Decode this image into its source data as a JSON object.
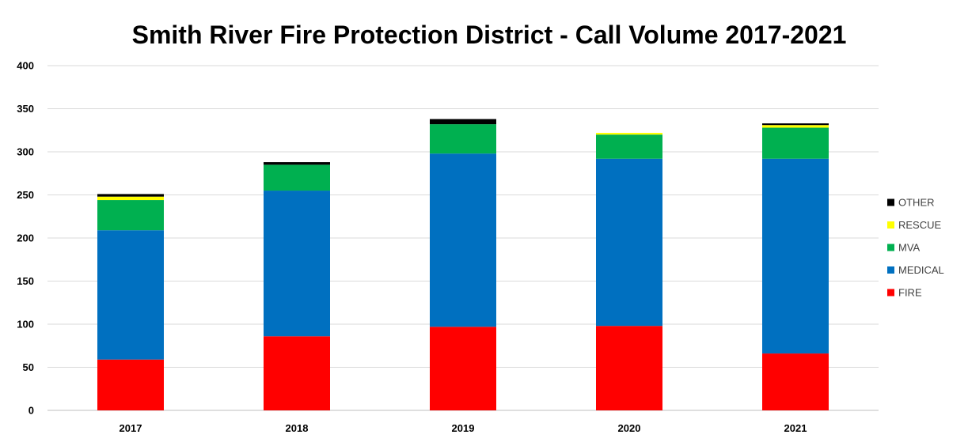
{
  "chart_data": {
    "type": "bar",
    "stacked": true,
    "title": "Smith River Fire Protection District - Call Volume 2017-2021",
    "xlabel": "",
    "ylabel": "",
    "categories": [
      "2017",
      "2018",
      "2019",
      "2020",
      "2021"
    ],
    "ylim": [
      0,
      400
    ],
    "yticks": [
      0,
      50,
      100,
      150,
      200,
      250,
      300,
      350,
      400
    ],
    "grid": true,
    "legend_position": "right",
    "series": [
      {
        "name": "FIRE",
        "color": "#ff0000",
        "values": [
          59,
          86,
          97,
          98,
          66
        ]
      },
      {
        "name": "MEDICAL",
        "color": "#0070c0",
        "values": [
          150,
          169,
          201,
          194,
          226
        ]
      },
      {
        "name": "MVA",
        "color": "#00b050",
        "values": [
          35,
          30,
          34,
          28,
          36
        ]
      },
      {
        "name": "RESCUE",
        "color": "#ffff00",
        "values": [
          4,
          0,
          0,
          2,
          3
        ]
      },
      {
        "name": "OTHER",
        "color": "#000000",
        "values": [
          3,
          3,
          6,
          0,
          2
        ]
      }
    ]
  }
}
